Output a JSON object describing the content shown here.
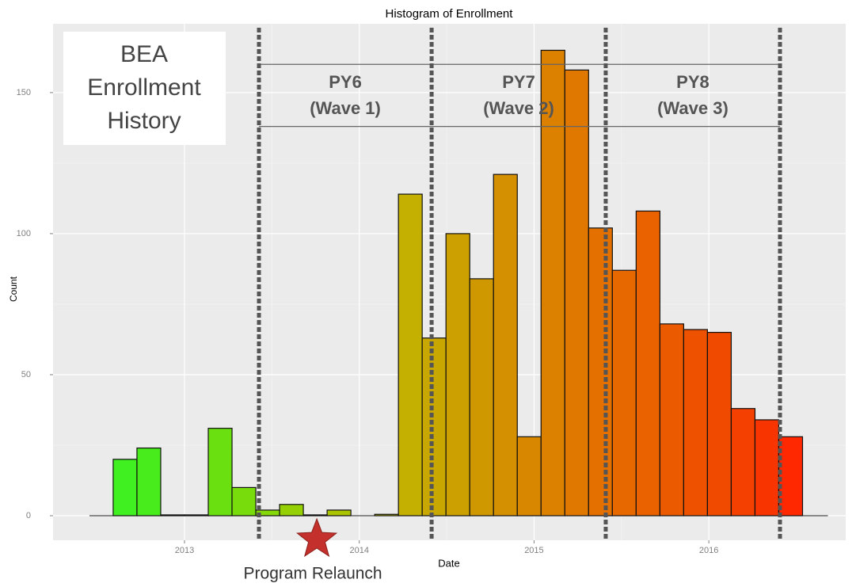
{
  "chart_data": {
    "type": "histogram",
    "title": "Histogram of Enrollment",
    "x_label": "Date",
    "y_label": "Count",
    "bins": [
      2012.592,
      2012.728,
      2012.864,
      2013.0,
      2013.136,
      2013.272,
      2013.408,
      2013.544,
      2013.68,
      2013.816,
      2013.952,
      2014.088,
      2014.224,
      2014.36,
      2014.496,
      2014.632,
      2014.768,
      2014.904,
      2015.04,
      2015.176,
      2015.312,
      2015.448,
      2015.584,
      2015.72,
      2015.856,
      2015.992,
      2016.128,
      2016.264,
      2016.4,
      2016.536
    ],
    "values": [
      20,
      24,
      0.3,
      0.3,
      31,
      10,
      2,
      4,
      0.3,
      2,
      0,
      0.5,
      114,
      63,
      100,
      84,
      121,
      28,
      165,
      158,
      102,
      87,
      108,
      68,
      66,
      65,
      38,
      34,
      28
    ],
    "colors": [
      "#40f020",
      "#48ec1c",
      "#52e818",
      "#5ce414",
      "#6ae010",
      "#78dc0c",
      "#86d808",
      "#94d004",
      "#a0cc00",
      "#aac400",
      "#b4be00",
      "#bcb800",
      "#c4b000",
      "#c8a800",
      "#cca000",
      "#d09800",
      "#d49000",
      "#d88800",
      "#dc8000",
      "#e07800",
      "#e47000",
      "#e86800",
      "#ea6200",
      "#ec5a00",
      "#ee5200",
      "#f04a00",
      "#f44000",
      "#f83400",
      "#ff2800"
    ],
    "xlim": [
      2012.248,
      2016.783
    ],
    "ylim": [
      -8.7,
      174.4
    ],
    "xticks": [
      2013,
      2014,
      2015,
      2016
    ],
    "yticks": [
      0,
      50,
      100,
      150
    ],
    "grid": true,
    "vlines": [
      2013.426,
      2014.414,
      2015.41,
      2016.407
    ],
    "bracket_y": [
      160,
      138
    ],
    "wave_labels": [
      [
        "PY6",
        "(Wave 1)"
      ],
      [
        "PY7",
        "(Wave 2)"
      ],
      [
        "PY8",
        "(Wave 3)"
      ]
    ],
    "box_label": [
      "BEA",
      "Enrollment",
      "History"
    ],
    "relaunch": {
      "x": 2013.757,
      "label": "Program Relaunch"
    }
  }
}
